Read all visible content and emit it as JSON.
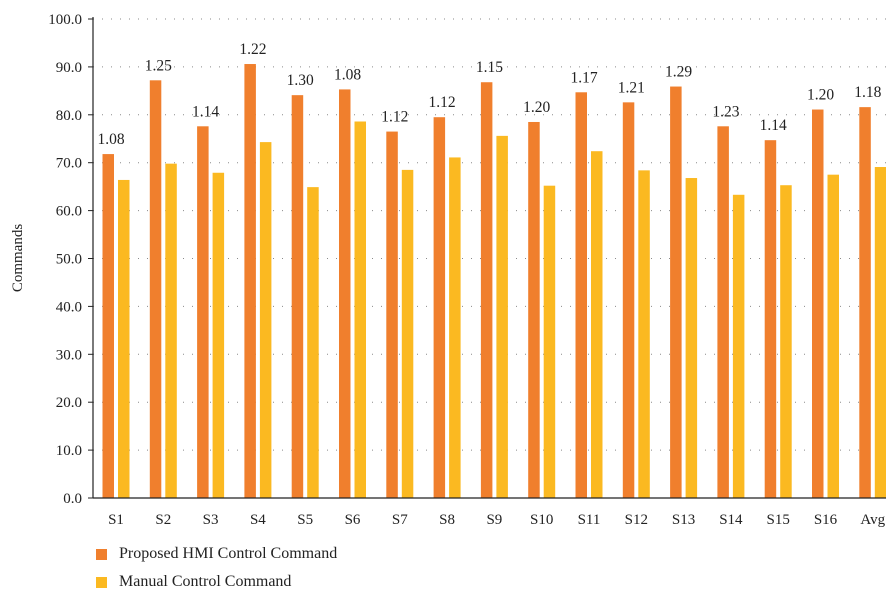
{
  "chart_data": {
    "type": "bar",
    "categories": [
      "S1",
      "S2",
      "S3",
      "S4",
      "S5",
      "S6",
      "S7",
      "S8",
      "S9",
      "S10",
      "S11",
      "S12",
      "S13",
      "S14",
      "S15",
      "S16",
      "Avg"
    ],
    "series": [
      {
        "name": "Proposed HMI Control Command",
        "color": "#f07f2d",
        "values": [
          71.8,
          87.2,
          77.6,
          90.6,
          84.1,
          85.3,
          76.5,
          79.5,
          86.8,
          78.5,
          84.7,
          82.6,
          85.9,
          77.6,
          74.7,
          81.1,
          81.6
        ]
      },
      {
        "name": "Manual Control Command",
        "color": "#fbb921",
        "values": [
          66.4,
          69.8,
          67.9,
          74.3,
          64.9,
          78.6,
          68.5,
          71.1,
          75.6,
          65.2,
          72.4,
          68.4,
          66.8,
          63.3,
          65.3,
          67.5,
          69.1
        ]
      }
    ],
    "data_labels": [
      "1.08",
      "1.25",
      "1.14",
      "1.22",
      "1.30",
      "1.08",
      "1.12",
      "1.12",
      "1.15",
      "1.20",
      "1.17",
      "1.21",
      "1.29",
      "1.23",
      "1.14",
      "1.20",
      "1.18"
    ],
    "ylabel": "Commands",
    "xlabel": "",
    "ylim": [
      0,
      100
    ],
    "yticks": [
      "0.0",
      "10.0",
      "20.0",
      "30.0",
      "40.0",
      "50.0",
      "60.0",
      "70.0",
      "80.0",
      "90.0",
      "100.0"
    ],
    "grid": "horizontal dotted",
    "legend_position": "bottom-left"
  }
}
